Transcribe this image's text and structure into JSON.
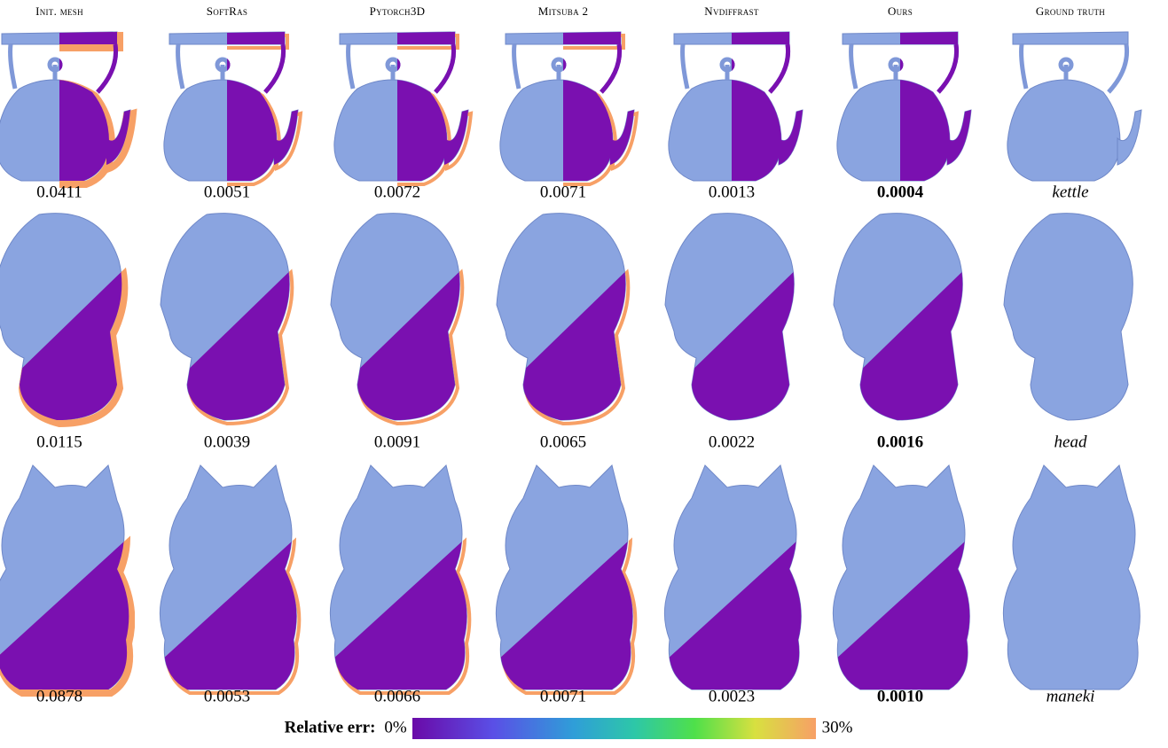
{
  "columns": [
    "Init. mesh",
    "SoftRas",
    "Pytorch3D",
    "Mitsuba 2",
    "Nvdiffrast",
    "Ours",
    "Ground truth"
  ],
  "rows": [
    {
      "values": [
        "0.0411",
        "0.0051",
        "0.0072",
        "0.0071",
        "0.0013",
        "0.0004"
      ],
      "name": "kettle"
    },
    {
      "values": [
        "0.0115",
        "0.0039",
        "0.0091",
        "0.0065",
        "0.0022",
        "0.0016"
      ],
      "name": "head"
    },
    {
      "values": [
        "0.0878",
        "0.0053",
        "0.0066",
        "0.0071",
        "0.0023",
        "0.0010"
      ],
      "name": "maneki"
    }
  ],
  "colorbar": {
    "label": "Relative err:",
    "min": "0%",
    "max": "30%"
  }
}
